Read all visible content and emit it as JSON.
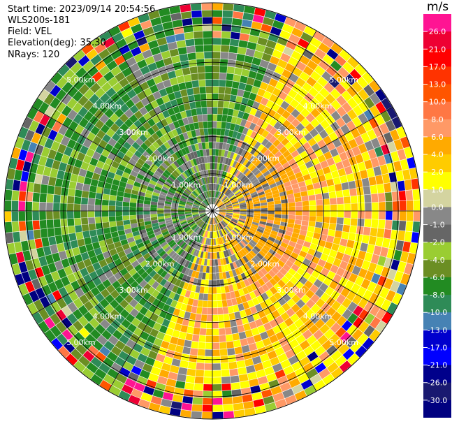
{
  "info": {
    "start_time": "Start time: 2023/09/14 20:54:56",
    "instrument": "WLS200s-181",
    "field": "Field: VEL",
    "elevation": "Elevation(deg): 35.30",
    "nrays": "NRays: 120"
  },
  "chart_data": {
    "type": "heatmap",
    "projection": "polar PPI",
    "field": "VEL",
    "unit": "m/s",
    "nrays": 120,
    "max_range_km": 5.6,
    "range_ring_labels": [
      "1.00km",
      "2.00km",
      "3.00km",
      "4.00km",
      "5.00km"
    ],
    "range_rings_km": [
      1,
      2,
      3,
      4,
      5
    ],
    "colorbar": {
      "unit_label": "m/s",
      "ticks": [
        "26.0",
        "21.0",
        "17.0",
        "13.0",
        "10.0",
        "8.0",
        "6.0",
        "4.0",
        "2.0",
        "1.0",
        "0.0",
        "-1.0",
        "-2.0",
        "-4.0",
        "-6.0",
        "-8.0",
        "-10.0",
        "-13.0",
        "-17.0",
        "-21.0",
        "-26.0",
        "-30.0"
      ],
      "colors": [
        "#ff1493",
        "#ee0033",
        "#ff0000",
        "#ff3300",
        "#ff5500",
        "#ff7744",
        "#ff9966",
        "#ffaa00",
        "#ffcc00",
        "#ffff00",
        "#d4d4a0",
        "#888888",
        "#666666",
        "#9acd32",
        "#6b8e23",
        "#228b22",
        "#2e8b57",
        "#4682b4",
        "#0000cd",
        "#0000ff",
        "#00008b",
        "#191970",
        "#000080"
      ]
    }
  }
}
